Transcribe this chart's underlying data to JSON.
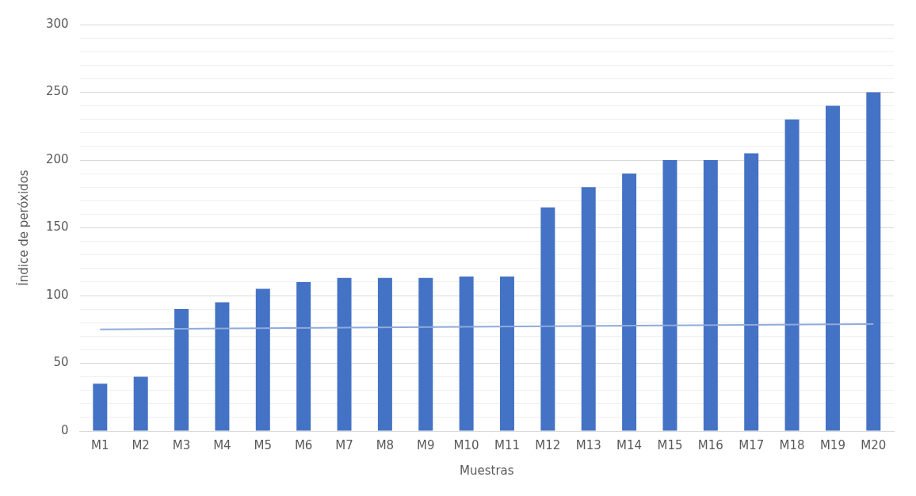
{
  "chart_data": {
    "type": "bar",
    "xlabel": "Muestras",
    "ylabel": "Índice de peróxidos",
    "categories": [
      "M1",
      "M2",
      "M3",
      "M4",
      "M5",
      "M6",
      "M7",
      "M8",
      "M9",
      "M10",
      "M11",
      "M12",
      "M13",
      "M14",
      "M15",
      "M16",
      "M17",
      "M18",
      "M19",
      "M20"
    ],
    "series": [
      {
        "color": "#4472c4",
        "values": [
          35,
          40,
          90,
          95,
          105,
          110,
          113,
          113,
          113,
          114,
          114,
          165,
          180,
          190,
          200,
          200,
          205,
          230,
          240,
          250
        ]
      },
      {
        "type": "line",
        "color": "#8faadc",
        "x": [
          "M1",
          "M20"
        ],
        "values": [
          75,
          79
        ]
      }
    ],
    "ylim": [
      0,
      300
    ],
    "yticks": [
      0,
      {
        "value": 10,
        "label": null
      },
      {
        "value": 20,
        "label": null
      },
      {
        "value": 30,
        "label": null
      },
      {
        "value": 40,
        "label": null
      },
      50,
      {
        "value": 60,
        "label": null
      },
      {
        "value": 70,
        "label": null
      },
      {
        "value": 80,
        "label": null
      },
      {
        "value": 90,
        "label": null
      },
      100,
      {
        "value": 110,
        "label": null
      },
      {
        "value": 120,
        "label": null
      },
      {
        "value": 130,
        "label": null
      },
      {
        "value": 140,
        "label": null
      },
      150,
      {
        "value": 160,
        "label": null
      },
      {
        "value": 170,
        "label": null
      },
      {
        "value": 180,
        "label": null
      },
      {
        "value": 190,
        "label": null
      },
      200,
      {
        "value": 210,
        "label": null
      },
      {
        "value": 220,
        "label": null
      },
      {
        "value": 230,
        "label": null
      },
      {
        "value": 240,
        "label": null
      },
      250,
      {
        "value": 260,
        "label": null
      },
      {
        "value": 270,
        "label": null
      },
      {
        "value": 280,
        "label": null
      },
      {
        "value": 290,
        "label": null
      },
      300
    ],
    "grid": "y",
    "legend": false,
    "marker": "none"
  }
}
